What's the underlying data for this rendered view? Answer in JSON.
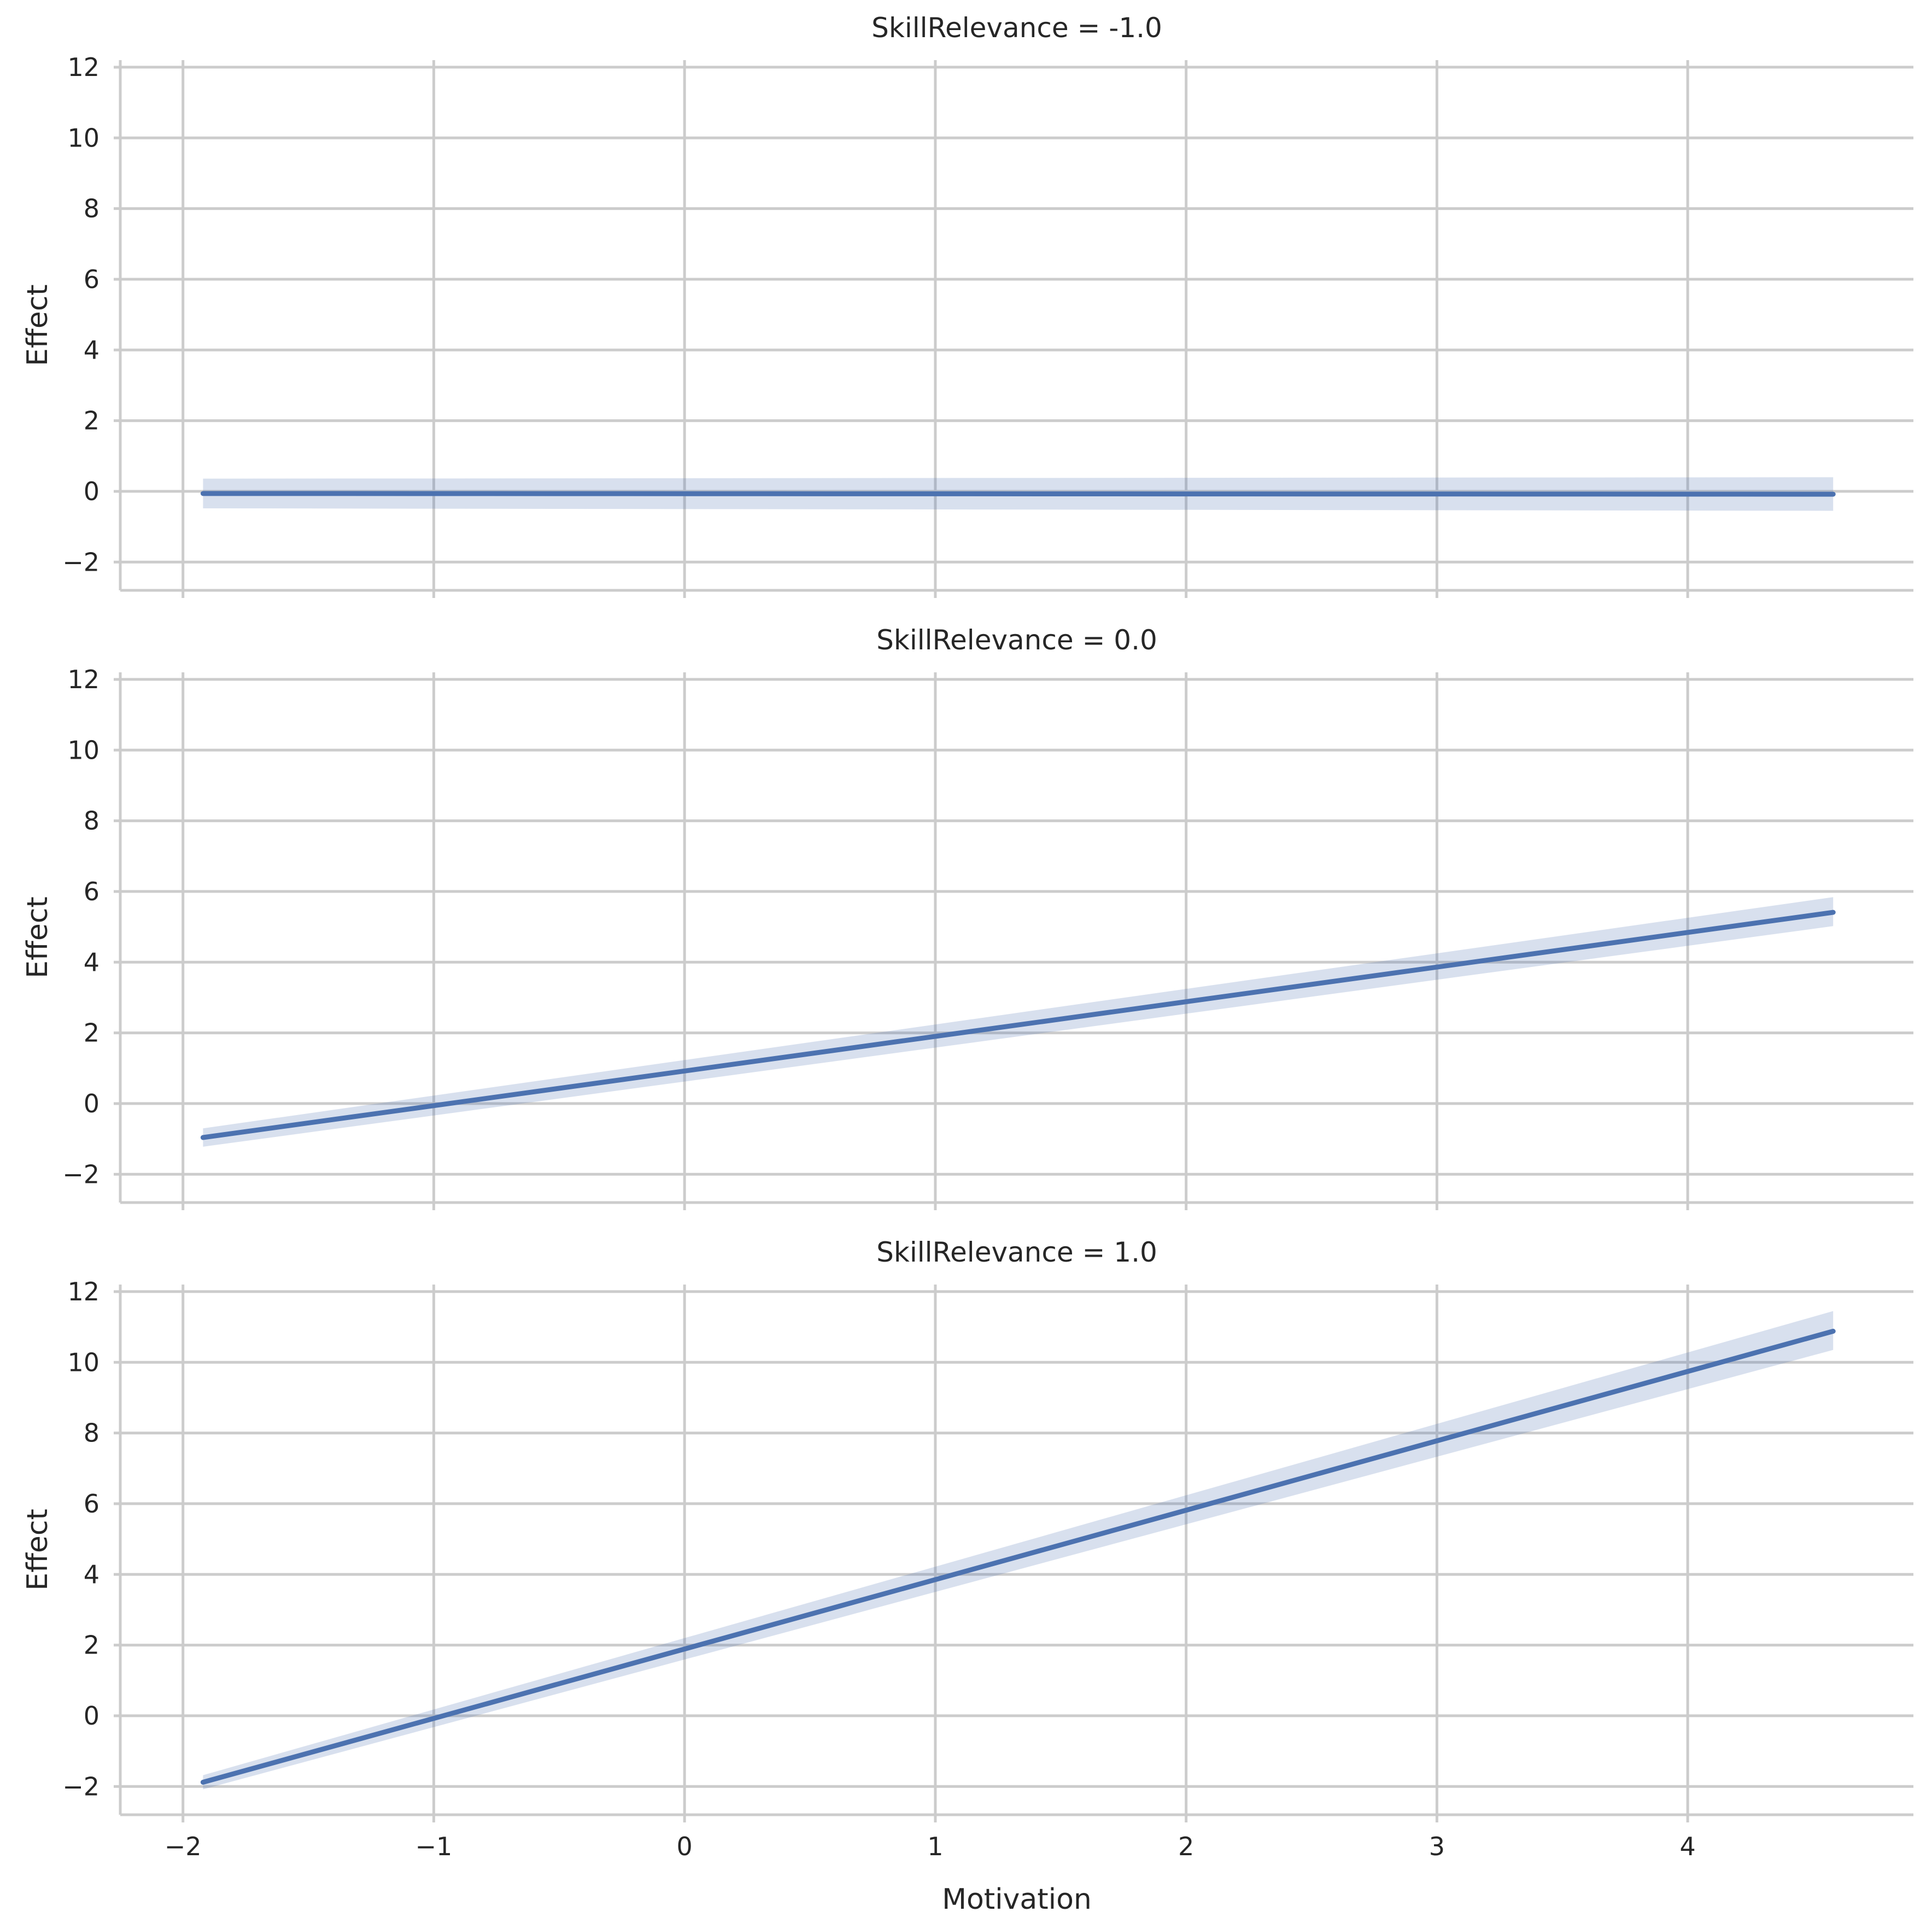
{
  "chart_data": [
    {
      "type": "line",
      "title": "SkillRelevance = -1.0",
      "xlabel": "",
      "ylabel": "Effect",
      "xlim": [
        -2.25,
        4.9
      ],
      "ylim": [
        -2.8,
        12.2
      ],
      "xticks": [
        -2,
        -1,
        0,
        1,
        2,
        3,
        4
      ],
      "xtick_labels": [
        "",
        "",
        "",
        "",
        "",
        "",
        ""
      ],
      "yticks": [
        -2,
        0,
        2,
        4,
        6,
        8,
        10,
        12
      ],
      "ytick_labels": [
        "−2",
        "0",
        "2",
        "4",
        "6",
        "8",
        "10",
        "12"
      ],
      "grid": true,
      "series": [
        {
          "x": [
            -1.92,
            4.58
          ],
          "y": [
            -0.06,
            -0.08
          ],
          "ci_lower": [
            -0.48,
            -0.55
          ],
          "ci_upper": [
            0.36,
            0.4
          ]
        }
      ]
    },
    {
      "type": "line",
      "title": "SkillRelevance = 0.0",
      "xlabel": "",
      "ylabel": "Effect",
      "xlim": [
        -2.25,
        4.9
      ],
      "ylim": [
        -2.8,
        12.2
      ],
      "xticks": [
        -2,
        -1,
        0,
        1,
        2,
        3,
        4
      ],
      "xtick_labels": [
        "",
        "",
        "",
        "",
        "",
        "",
        ""
      ],
      "yticks": [
        -2,
        0,
        2,
        4,
        6,
        8,
        10,
        12
      ],
      "ytick_labels": [
        "−2",
        "0",
        "2",
        "4",
        "6",
        "8",
        "10",
        "12"
      ],
      "grid": true,
      "series": [
        {
          "x": [
            -1.92,
            4.58
          ],
          "y": [
            -0.96,
            5.41
          ],
          "ci_lower": [
            -1.22,
            5.02
          ],
          "ci_upper": [
            -0.7,
            5.84
          ]
        }
      ]
    },
    {
      "type": "line",
      "title": "SkillRelevance = 1.0",
      "xlabel": "Motivation",
      "ylabel": "Effect",
      "xlim": [
        -2.25,
        4.9
      ],
      "ylim": [
        -2.8,
        12.2
      ],
      "xticks": [
        -2,
        -1,
        0,
        1,
        2,
        3,
        4
      ],
      "xtick_labels": [
        "−2",
        "−1",
        "0",
        "1",
        "2",
        "3",
        "4"
      ],
      "yticks": [
        -2,
        0,
        2,
        4,
        6,
        8,
        10,
        12
      ],
      "ytick_labels": [
        "−2",
        "0",
        "2",
        "4",
        "6",
        "8",
        "10",
        "12"
      ],
      "grid": true,
      "series": [
        {
          "x": [
            -1.92,
            4.58
          ],
          "y": [
            -1.88,
            10.88
          ],
          "ci_lower": [
            -2.08,
            10.35
          ],
          "ci_upper": [
            -1.68,
            11.45
          ]
        }
      ]
    }
  ],
  "colors": {
    "line": "#4c72b0",
    "band": "#4c72b0",
    "grid": "#cccccc",
    "spine": "#cccccc",
    "text": "#262626"
  }
}
